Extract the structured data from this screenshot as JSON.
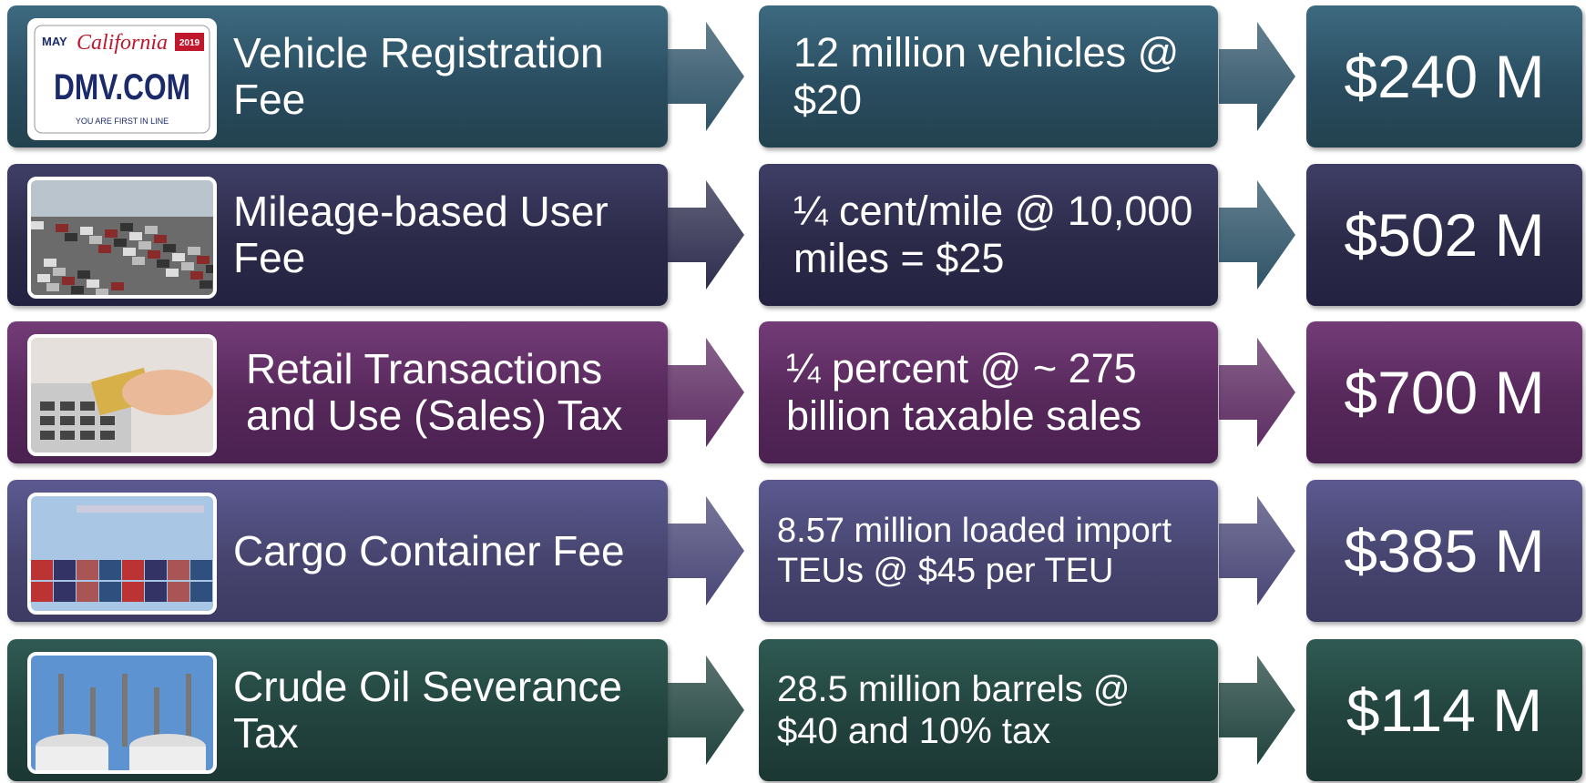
{
  "rows": [
    {
      "fee": "Vehicle Registration Fee",
      "calculation": "12 million vehicles @ $20",
      "revenue": "$240 M"
    },
    {
      "fee": "Mileage-based User Fee",
      "calculation": "¼ cent/mile @ 10,000 miles = $25",
      "revenue": "$502 M"
    },
    {
      "fee": "Retail Transactions and Use (Sales) Tax",
      "calculation": "¼ percent @ ~ 275 billion taxable sales",
      "revenue": "$700 M"
    },
    {
      "fee": "Cargo Container Fee",
      "calculation": "8.57 million loaded import TEUs @ $45 per TEU",
      "revenue": "$385 M"
    },
    {
      "fee": "Crude Oil Severance Tax",
      "calculation": "28.5 million barrels @ $40 and 10% tax",
      "revenue": "$114 M"
    }
  ],
  "plate": {
    "month": "MAY",
    "state": "California",
    "year": "2019",
    "number": "DMV.COM",
    "slogan": "YOU ARE FIRST IN LINE"
  }
}
